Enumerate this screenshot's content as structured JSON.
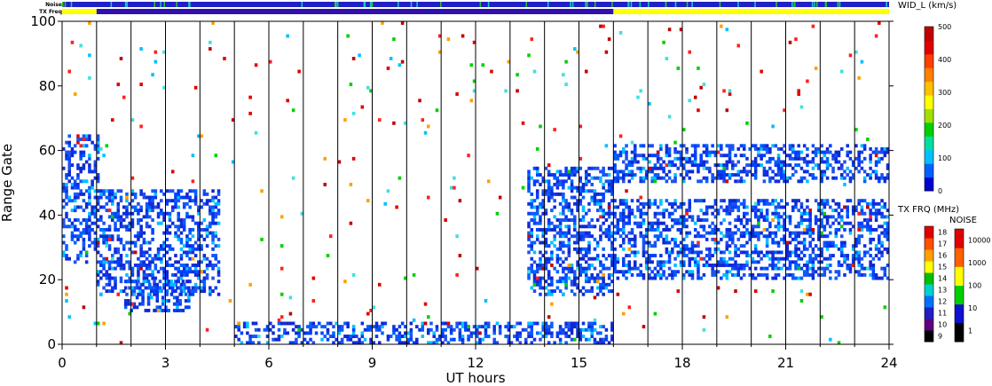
{
  "chart_data": {
    "type": "heatmap",
    "top_strips": [
      "Noise",
      "TX Freq"
    ],
    "xlabel": "UT hours",
    "ylabel": "Range Gate",
    "xlim": [
      0,
      24
    ],
    "ylim": [
      0,
      100
    ],
    "x_ticks": [
      "0",
      "3",
      "6",
      "9",
      "12",
      "15",
      "18",
      "21",
      "24"
    ],
    "y_ticks": [
      "0",
      "20",
      "40",
      "60",
      "80",
      "100"
    ],
    "grid": "vertical lines every 1 UT hour",
    "width_scale": {
      "title": "WID_L (km/s)",
      "ticks": [
        "0",
        "100",
        "200",
        "300",
        "400",
        "500"
      ],
      "colors": [
        "#0000d0",
        "#0060ff",
        "#00c0ff",
        "#00e0a0",
        "#00d000",
        "#a0e000",
        "#ffff00",
        "#ffc000",
        "#ff8000",
        "#ff4000",
        "#e00000",
        "#c00000"
      ]
    },
    "txfreq_scale": {
      "title": "TX FRQ (MHz)",
      "ticks": [
        "9",
        "10",
        "11",
        "12",
        "13",
        "14",
        "15",
        "16",
        "17",
        "18"
      ],
      "colors": [
        "#000000",
        "#600080",
        "#2020c0",
        "#0070ff",
        "#00d0d0",
        "#00c000",
        "#ffff00",
        "#ffa000",
        "#ff5000",
        "#e00000"
      ]
    },
    "noise_scale": {
      "title": "NOISE",
      "ticks": [
        "1",
        "10",
        "100",
        "1000",
        "10000"
      ],
      "colors": [
        "#000000",
        "#1010d0",
        "#00d000",
        "#ffff00",
        "#ff6000",
        "#e00000"
      ]
    },
    "noise_strip_segments": [
      {
        "x": [
          0,
          24
        ],
        "level": "blue",
        "color": "#2020c8"
      }
    ],
    "txfreq_strip_segments": [
      {
        "x": [
          0,
          1.0
        ],
        "color": "#ffff00"
      },
      {
        "x": [
          1.0,
          16.0
        ],
        "color": "#3010b0"
      },
      {
        "x": [
          16.0,
          24
        ],
        "color": "#ffff00"
      }
    ],
    "echo_regions": [
      {
        "x": [
          0,
          1.1
        ],
        "gates": [
          25,
          65
        ],
        "dominant_width": "low"
      },
      {
        "x": [
          1.0,
          4.6
        ],
        "gates": [
          15,
          48
        ],
        "dominant_width": "low"
      },
      {
        "x": [
          1.8,
          3.7
        ],
        "gates": [
          10,
          20
        ],
        "dominant_width": "low"
      },
      {
        "x": [
          5.0,
          16.0
        ],
        "gates": [
          0,
          7
        ],
        "dominant_width": "low"
      },
      {
        "x": [
          13.5,
          16.0
        ],
        "gates": [
          15,
          55
        ],
        "dominant_width": "low"
      },
      {
        "x": [
          16.0,
          24.0
        ],
        "gates": [
          20,
          45
        ],
        "dominant_width": "low"
      },
      {
        "x": [
          16.0,
          24.0
        ],
        "gates": [
          50,
          62
        ],
        "dominant_width": "low"
      },
      {
        "x": [
          0,
          24.0
        ],
        "gates": [
          0,
          100
        ],
        "dominant_width": "scattered high"
      }
    ]
  }
}
